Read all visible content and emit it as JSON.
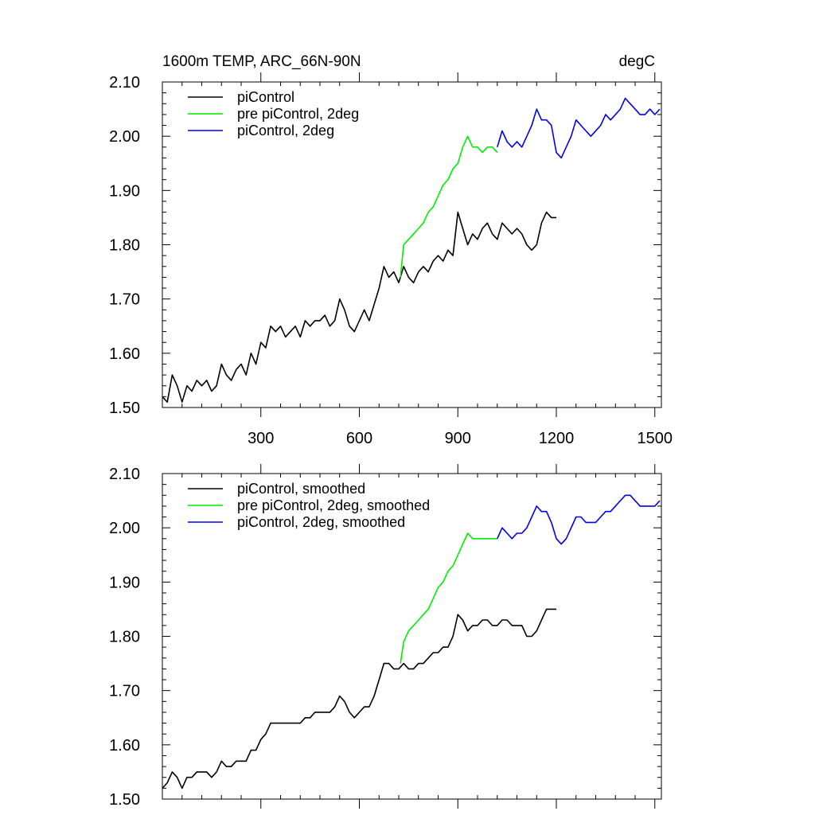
{
  "chart_data": [
    {
      "type": "line",
      "title": "1600m TEMP, ARC_66N-90N",
      "units": "degC",
      "xlim": [
        0,
        1520
      ],
      "ylim": [
        1.5,
        2.1
      ],
      "xticks": [
        300,
        600,
        900,
        1200,
        1500
      ],
      "xtick_labels": [
        "300",
        "600",
        "900",
        "1200",
        "1500"
      ],
      "yticks": [
        1.5,
        1.6,
        1.7,
        1.8,
        1.9,
        2.0,
        2.1
      ],
      "ytick_labels": [
        "1.50",
        "1.60",
        "1.70",
        "1.80",
        "1.90",
        "2.00",
        "2.10"
      ],
      "legend_position": "top-left",
      "series": [
        {
          "name": "piControl",
          "color": "#000000",
          "x": [
            0,
            15,
            30,
            45,
            60,
            75,
            90,
            105,
            120,
            135,
            150,
            165,
            180,
            195,
            210,
            225,
            240,
            255,
            270,
            285,
            300,
            315,
            330,
            345,
            360,
            375,
            390,
            405,
            420,
            435,
            450,
            465,
            480,
            495,
            510,
            525,
            540,
            555,
            570,
            585,
            600,
            615,
            630,
            645,
            660,
            675,
            690,
            705,
            720,
            735,
            750,
            765,
            780,
            795,
            810,
            825,
            840,
            855,
            870,
            885,
            900,
            915,
            930,
            945,
            960,
            975,
            990,
            1005,
            1020,
            1035,
            1050,
            1065,
            1080,
            1095,
            1110,
            1125,
            1140,
            1155,
            1170,
            1185,
            1200
          ],
          "values": [
            1.52,
            1.51,
            1.56,
            1.54,
            1.51,
            1.54,
            1.53,
            1.55,
            1.54,
            1.55,
            1.53,
            1.54,
            1.58,
            1.56,
            1.55,
            1.57,
            1.58,
            1.56,
            1.6,
            1.58,
            1.62,
            1.61,
            1.65,
            1.64,
            1.65,
            1.63,
            1.64,
            1.65,
            1.63,
            1.66,
            1.65,
            1.66,
            1.66,
            1.67,
            1.65,
            1.66,
            1.7,
            1.68,
            1.65,
            1.64,
            1.66,
            1.68,
            1.66,
            1.69,
            1.72,
            1.76,
            1.74,
            1.75,
            1.73,
            1.76,
            1.74,
            1.73,
            1.75,
            1.76,
            1.75,
            1.77,
            1.78,
            1.77,
            1.79,
            1.78,
            1.86,
            1.83,
            1.8,
            1.82,
            1.81,
            1.83,
            1.84,
            1.82,
            1.81,
            1.84,
            1.83,
            1.82,
            1.83,
            1.82,
            1.8,
            1.79,
            1.8,
            1.84,
            1.86,
            1.85,
            1.85
          ]
        },
        {
          "name": "pre piControl, 2deg",
          "color": "#00ee00",
          "x": [
            725,
            735,
            750,
            765,
            780,
            795,
            810,
            825,
            840,
            855,
            870,
            885,
            900,
            915,
            930,
            945,
            960,
            975,
            990,
            1005,
            1020
          ],
          "values": [
            1.74,
            1.8,
            1.81,
            1.82,
            1.83,
            1.84,
            1.86,
            1.87,
            1.89,
            1.91,
            1.92,
            1.94,
            1.95,
            1.98,
            2.0,
            1.98,
            1.98,
            1.97,
            1.98,
            1.98,
            1.97
          ]
        },
        {
          "name": "piControl, 2deg",
          "color": "#0000ee",
          "x": [
            1020,
            1035,
            1050,
            1065,
            1080,
            1095,
            1110,
            1125,
            1140,
            1155,
            1170,
            1185,
            1200,
            1215,
            1230,
            1245,
            1260,
            1275,
            1290,
            1305,
            1320,
            1335,
            1350,
            1365,
            1380,
            1395,
            1410,
            1425,
            1440,
            1455,
            1470,
            1485,
            1500,
            1515
          ],
          "values": [
            1.98,
            2.01,
            1.99,
            1.98,
            1.99,
            1.98,
            2.0,
            2.02,
            2.05,
            2.03,
            2.03,
            2.02,
            1.97,
            1.96,
            1.98,
            2.0,
            2.03,
            2.02,
            2.01,
            2.0,
            2.01,
            2.02,
            2.04,
            2.03,
            2.04,
            2.05,
            2.07,
            2.06,
            2.05,
            2.04,
            2.04,
            2.05,
            2.04,
            2.05
          ]
        }
      ]
    },
    {
      "type": "line",
      "xlim": [
        0,
        1520
      ],
      "ylim": [
        1.5,
        2.1
      ],
      "yticks": [
        1.5,
        1.6,
        1.7,
        1.8,
        1.9,
        2.0,
        2.1
      ],
      "ytick_labels": [
        "1.50",
        "1.60",
        "1.70",
        "1.80",
        "1.90",
        "2.00",
        "2.10"
      ],
      "legend_position": "top-left",
      "series": [
        {
          "name": "piControl, smoothed",
          "color": "#000000",
          "x": [
            0,
            15,
            30,
            45,
            60,
            75,
            90,
            105,
            120,
            135,
            150,
            165,
            180,
            195,
            210,
            225,
            240,
            255,
            270,
            285,
            300,
            315,
            330,
            345,
            360,
            375,
            390,
            405,
            420,
            435,
            450,
            465,
            480,
            495,
            510,
            525,
            540,
            555,
            570,
            585,
            600,
            615,
            630,
            645,
            660,
            675,
            690,
            705,
            720,
            735,
            750,
            765,
            780,
            795,
            810,
            825,
            840,
            855,
            870,
            885,
            900,
            915,
            930,
            945,
            960,
            975,
            990,
            1005,
            1020,
            1035,
            1050,
            1065,
            1080,
            1095,
            1110,
            1125,
            1140,
            1155,
            1170,
            1185,
            1200
          ],
          "values": [
            1.52,
            1.53,
            1.55,
            1.54,
            1.52,
            1.54,
            1.54,
            1.55,
            1.55,
            1.55,
            1.54,
            1.55,
            1.57,
            1.56,
            1.56,
            1.57,
            1.57,
            1.57,
            1.59,
            1.59,
            1.61,
            1.62,
            1.64,
            1.64,
            1.64,
            1.64,
            1.64,
            1.64,
            1.64,
            1.65,
            1.65,
            1.66,
            1.66,
            1.66,
            1.66,
            1.67,
            1.69,
            1.68,
            1.66,
            1.65,
            1.66,
            1.67,
            1.67,
            1.69,
            1.72,
            1.75,
            1.75,
            1.74,
            1.74,
            1.75,
            1.74,
            1.74,
            1.75,
            1.75,
            1.76,
            1.77,
            1.77,
            1.78,
            1.78,
            1.8,
            1.84,
            1.83,
            1.81,
            1.82,
            1.82,
            1.83,
            1.83,
            1.82,
            1.82,
            1.83,
            1.83,
            1.82,
            1.82,
            1.82,
            1.8,
            1.8,
            1.81,
            1.83,
            1.85,
            1.85,
            1.85
          ]
        },
        {
          "name": "pre piControl, 2deg, smoothed",
          "color": "#00ee00",
          "x": [
            725,
            735,
            750,
            765,
            780,
            795,
            810,
            825,
            840,
            855,
            870,
            885,
            900,
            915,
            930,
            945,
            960,
            975,
            990,
            1005,
            1020
          ],
          "values": [
            1.75,
            1.79,
            1.81,
            1.82,
            1.83,
            1.84,
            1.85,
            1.87,
            1.89,
            1.9,
            1.92,
            1.93,
            1.95,
            1.97,
            1.99,
            1.98,
            1.98,
            1.98,
            1.98,
            1.98,
            1.98
          ]
        },
        {
          "name": "piControl, 2deg, smoothed",
          "color": "#0000ee",
          "x": [
            1020,
            1035,
            1050,
            1065,
            1080,
            1095,
            1110,
            1125,
            1140,
            1155,
            1170,
            1185,
            1200,
            1215,
            1230,
            1245,
            1260,
            1275,
            1290,
            1305,
            1320,
            1335,
            1350,
            1365,
            1380,
            1395,
            1410,
            1425,
            1440,
            1455,
            1470,
            1485,
            1500,
            1515
          ],
          "values": [
            1.98,
            2.0,
            1.99,
            1.98,
            1.99,
            1.99,
            2.0,
            2.02,
            2.04,
            2.03,
            2.03,
            2.01,
            1.98,
            1.97,
            1.98,
            2.0,
            2.02,
            2.02,
            2.01,
            2.01,
            2.01,
            2.02,
            2.03,
            2.03,
            2.04,
            2.05,
            2.06,
            2.06,
            2.05,
            2.04,
            2.04,
            2.04,
            2.04,
            2.05
          ]
        }
      ]
    }
  ]
}
